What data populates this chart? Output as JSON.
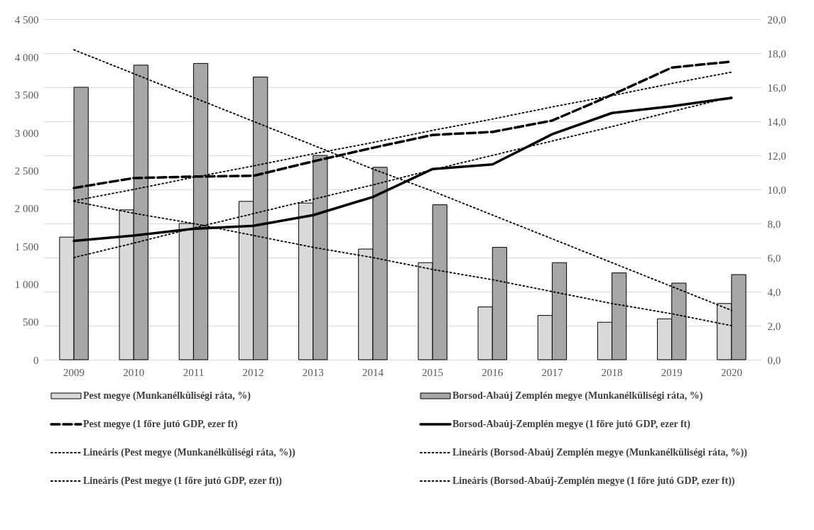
{
  "chart_data": {
    "type": "bar",
    "categories": [
      "2009",
      "2010",
      "2011",
      "2012",
      "2013",
      "2014",
      "2015",
      "2016",
      "2017",
      "2018",
      "2019",
      "2020"
    ],
    "series": [
      {
        "name": "Pest megye (Munkanélküliségi ráta, %)",
        "axis": "y2",
        "color": "#d9d9d9",
        "values": [
          7.2,
          8.8,
          8.0,
          9.3,
          9.2,
          6.5,
          5.7,
          3.1,
          2.6,
          2.2,
          2.4,
          3.3
        ]
      },
      {
        "name": "Borsod-Abaúj Zemplén megye (Munkanélküliségi ráta, %)",
        "axis": "y2",
        "color": "#a6a6a6",
        "values": [
          16.0,
          17.3,
          17.4,
          16.6,
          12.0,
          11.3,
          9.1,
          6.6,
          5.7,
          5.1,
          4.5,
          5.0
        ]
      },
      {
        "name": "Pest megye (1 főre jutó GDP, ezer ft)",
        "type": "line",
        "axis": "y",
        "line_style": "dashed",
        "color": "#000000",
        "values": [
          2270,
          2400,
          2420,
          2430,
          2620,
          2800,
          2970,
          3010,
          3160,
          3500,
          3860,
          3940
        ]
      },
      {
        "name": "Borsod-Abaúj-Zemplén megye (1 főre jutó GDP, ezer ft)",
        "type": "line",
        "axis": "y",
        "line_style": "solid",
        "color": "#000000",
        "values": [
          1570,
          1640,
          1730,
          1770,
          1910,
          2150,
          2520,
          2580,
          2980,
          3260,
          3350,
          3460
        ]
      },
      {
        "name": "Lineáris (Pest megye (Munkanélküliségi ráta, %))",
        "type": "line",
        "axis": "y2",
        "line_style": "dotted",
        "color": "#000000",
        "values": [
          9.3,
          8.6,
          8.0,
          7.3,
          6.6,
          6.0,
          5.3,
          4.7,
          4.0,
          3.3,
          2.7,
          2.0
        ]
      },
      {
        "name": "Lineáris (Borsod-Abaúj Zemplén megye (Munkanélküliségi ráta, %))",
        "type": "line",
        "axis": "y2",
        "line_style": "dotted",
        "color": "#000000",
        "values": [
          18.2,
          16.8,
          15.4,
          14.0,
          12.6,
          11.2,
          9.9,
          8.5,
          7.1,
          5.7,
          4.3,
          2.9
        ]
      },
      {
        "name": "Lineáris (Pest megye (1 főre jutó GDP, ezer ft))",
        "type": "line",
        "axis": "y",
        "line_style": "dotted",
        "color": "#000000",
        "values": [
          2100,
          2250,
          2410,
          2560,
          2720,
          2870,
          3030,
          3180,
          3340,
          3490,
          3650,
          3800
        ]
      },
      {
        "name": "Lineáris (Borsod-Abaúj-Zemplén megye (1 főre jutó GDP, ezer ft))",
        "type": "line",
        "axis": "y",
        "line_style": "dotted",
        "color": "#000000",
        "values": [
          1350,
          1540,
          1740,
          1930,
          2120,
          2310,
          2510,
          2700,
          2890,
          3080,
          3280,
          3470
        ]
      }
    ],
    "ylim": [
      0,
      4500
    ],
    "yticks": [
      0,
      {
        "value": 500,
        "label": "500"
      },
      {
        "value": 1000,
        "label": "1 000"
      },
      {
        "value": 1500,
        "label": "1 500"
      },
      {
        "value": 2000,
        "label": "2 000"
      },
      {
        "value": 2500,
        "label": "2 500"
      },
      {
        "value": 3000,
        "label": "3 000"
      },
      {
        "value": 3500,
        "label": "3 500"
      },
      {
        "value": 4000,
        "label": "4 000"
      },
      {
        "value": 4500,
        "label": "4 500"
      }
    ],
    "y2lim": [
      0,
      20
    ],
    "y2ticks": [
      {
        "value": 0,
        "label": "0,0"
      },
      {
        "value": 2,
        "label": "2,0"
      },
      {
        "value": 4,
        "label": "4,0"
      },
      {
        "value": 6,
        "label": "6,0"
      },
      {
        "value": 8,
        "label": "8,0"
      },
      {
        "value": 10,
        "label": "10,0"
      },
      {
        "value": 12,
        "label": "12,0"
      },
      {
        "value": 14,
        "label": "14,0"
      },
      {
        "value": 16,
        "label": "16,0"
      },
      {
        "value": 18,
        "label": "18,0"
      },
      {
        "value": 20,
        "label": "20,0"
      }
    ],
    "grid": "y",
    "legend": "bottom"
  }
}
